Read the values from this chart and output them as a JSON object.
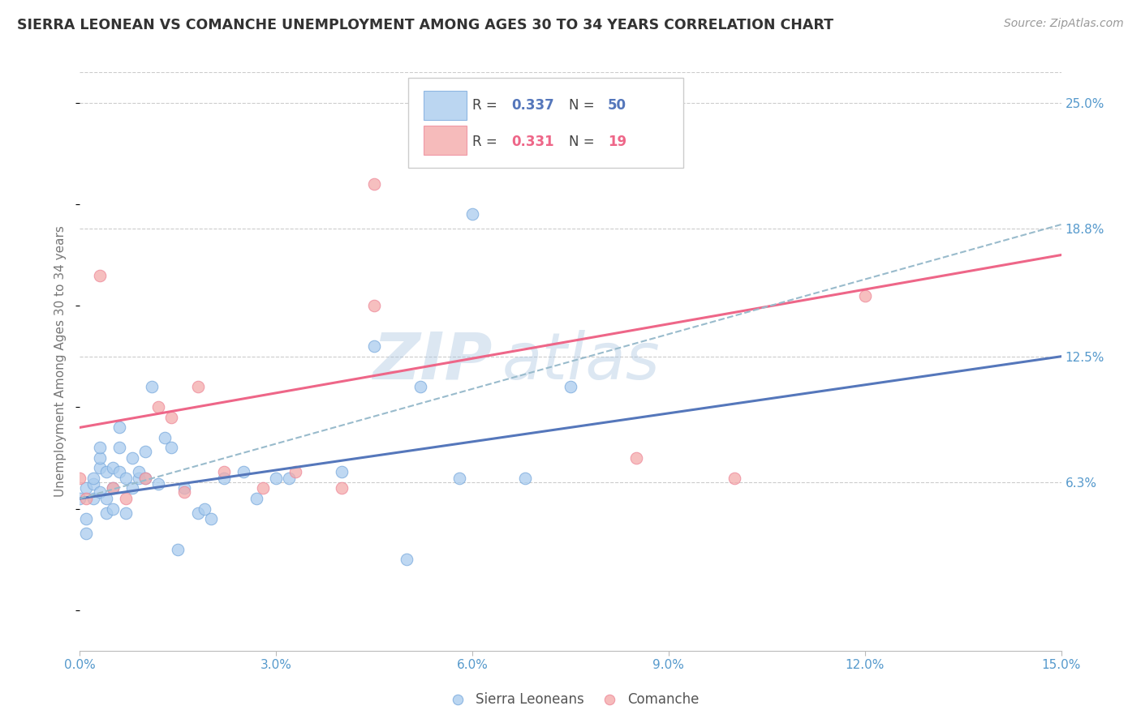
{
  "title": "SIERRA LEONEAN VS COMANCHE UNEMPLOYMENT AMONG AGES 30 TO 34 YEARS CORRELATION CHART",
  "source": "Source: ZipAtlas.com",
  "ylabel": "Unemployment Among Ages 30 to 34 years",
  "xlim": [
    0.0,
    0.15
  ],
  "ylim": [
    -0.02,
    0.265
  ],
  "xticks": [
    0.0,
    0.03,
    0.06,
    0.09,
    0.12,
    0.15
  ],
  "xtick_labels": [
    "0.0%",
    "3.0%",
    "6.0%",
    "9.0%",
    "12.0%",
    "15.0%"
  ],
  "ytick_vals": [
    0.063,
    0.125,
    0.188,
    0.25
  ],
  "ytick_labels": [
    "6.3%",
    "12.5%",
    "18.8%",
    "25.0%"
  ],
  "watermark": "ZIPAtlas",
  "watermark_color": "#a8c4e0",
  "background_color": "#ffffff",
  "grid_color": "#cccccc",
  "title_color": "#333333",
  "axis_label_color": "#777777",
  "tick_color": "#5599cc",
  "sierra_leonean_color": "#aaccee",
  "comanche_color": "#f4aaaa",
  "sierra_leonean_edge_color": "#7aaadd",
  "comanche_edge_color": "#ee8899",
  "sierra_leonean_line_color": "#5577bb",
  "comanche_line_color": "#ee6688",
  "dashed_line_color": "#99bbcc",
  "R_sierra": 0.337,
  "N_sierra": 50,
  "R_comanche": 0.331,
  "N_comanche": 19,
  "sierra_leonean_x": [
    0.0,
    0.001,
    0.001,
    0.001,
    0.002,
    0.002,
    0.002,
    0.003,
    0.003,
    0.003,
    0.003,
    0.004,
    0.004,
    0.004,
    0.005,
    0.005,
    0.005,
    0.006,
    0.006,
    0.006,
    0.007,
    0.007,
    0.008,
    0.008,
    0.009,
    0.009,
    0.01,
    0.01,
    0.011,
    0.012,
    0.013,
    0.014,
    0.015,
    0.016,
    0.018,
    0.019,
    0.02,
    0.022,
    0.025,
    0.027,
    0.03,
    0.032,
    0.04,
    0.045,
    0.05,
    0.052,
    0.058,
    0.06,
    0.068,
    0.075
  ],
  "sierra_leonean_y": [
    0.055,
    0.06,
    0.045,
    0.038,
    0.062,
    0.055,
    0.065,
    0.058,
    0.07,
    0.075,
    0.08,
    0.068,
    0.055,
    0.048,
    0.06,
    0.07,
    0.05,
    0.068,
    0.08,
    0.09,
    0.065,
    0.048,
    0.06,
    0.075,
    0.065,
    0.068,
    0.065,
    0.078,
    0.11,
    0.062,
    0.085,
    0.08,
    0.03,
    0.06,
    0.048,
    0.05,
    0.045,
    0.065,
    0.068,
    0.055,
    0.065,
    0.065,
    0.068,
    0.13,
    0.025,
    0.11,
    0.065,
    0.195,
    0.065,
    0.11
  ],
  "comanche_x": [
    0.0,
    0.001,
    0.003,
    0.005,
    0.007,
    0.01,
    0.012,
    0.014,
    0.016,
    0.018,
    0.022,
    0.028,
    0.033,
    0.04,
    0.045,
    0.085,
    0.1,
    0.12,
    0.045
  ],
  "comanche_y": [
    0.065,
    0.055,
    0.165,
    0.06,
    0.055,
    0.065,
    0.1,
    0.095,
    0.058,
    0.11,
    0.068,
    0.06,
    0.068,
    0.06,
    0.21,
    0.075,
    0.065,
    0.155,
    0.15
  ],
  "legend_label_sierra": "Sierra Leoneans",
  "legend_label_comanche": "Comanche",
  "sl_line_x0": 0.0,
  "sl_line_y0": 0.055,
  "sl_line_x1": 0.15,
  "sl_line_y1": 0.125,
  "co_line_x0": 0.0,
  "co_line_y0": 0.09,
  "co_line_x1": 0.15,
  "co_line_y1": 0.175,
  "dash_line_x0": 0.0,
  "dash_line_y0": 0.055,
  "dash_line_x1": 0.15,
  "dash_line_y1": 0.19
}
